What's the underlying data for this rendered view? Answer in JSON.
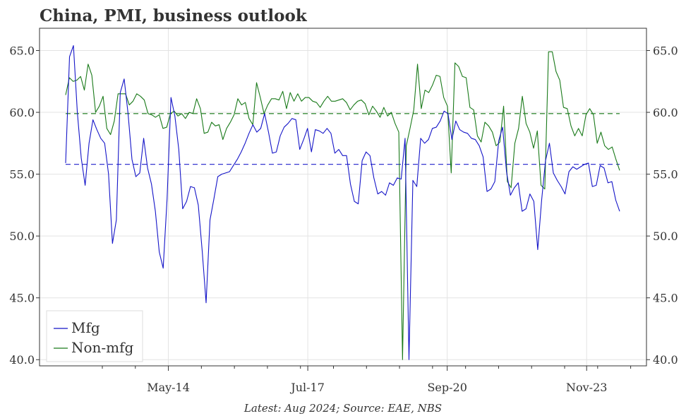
{
  "chart_data": {
    "type": "line",
    "title": "China, PMI, business outlook",
    "footer": "Latest: Aug 2024; Source: EAE, NBS",
    "x_start": "2012-01",
    "x_end": "2024-08",
    "x_major_ticks": [
      {
        "date": "2014-05",
        "label": "May-14"
      },
      {
        "date": "2017-07",
        "label": "Jul-17"
      },
      {
        "date": "2020-09",
        "label": "Sep-20"
      },
      {
        "date": "2023-11",
        "label": "Nov-23"
      }
    ],
    "y_ticks": [
      "40.0",
      "45.0",
      "50.0",
      "55.0",
      "60.0",
      "65.0"
    ],
    "ylim": [
      39.5,
      66.8
    ],
    "grid": true,
    "legend_position": "bottom-left",
    "colors": {
      "mfg": "#1515c8",
      "nonmfg": "#1a7a1a",
      "grid": "#e3e3e3",
      "axis": "#333333"
    },
    "series": [
      {
        "name": "Mfg",
        "color": "#1515c8",
        "average": 55.8,
        "values": [
          55.9,
          64.5,
          65.4,
          60.0,
          56.3,
          54.1,
          57.5,
          59.4,
          58.6,
          57.9,
          57.5,
          55.0,
          49.4,
          51.3,
          61.6,
          62.7,
          59.9,
          56.2,
          54.8,
          55.1,
          57.9,
          55.5,
          54.2,
          52.0,
          48.7,
          47.4,
          53.0,
          61.2,
          59.7,
          57.0,
          52.2,
          52.8,
          54.0,
          53.9,
          52.5,
          48.8,
          44.6,
          51.3,
          53.0,
          54.8,
          55.0,
          55.1,
          55.2,
          55.7,
          56.2,
          56.8,
          57.5,
          58.3,
          59.0,
          58.4,
          58.7,
          59.9,
          58.4,
          56.7,
          56.8,
          58.1,
          58.8,
          59.1,
          59.5,
          59.4,
          57.0,
          57.8,
          58.7,
          56.8,
          58.6,
          58.5,
          58.3,
          58.7,
          58.3,
          56.7,
          57.0,
          56.5,
          56.5,
          54.2,
          52.8,
          52.6,
          56.1,
          56.8,
          56.5,
          54.7,
          53.4,
          53.6,
          53.3,
          54.3,
          54.1,
          54.7,
          54.6,
          57.9,
          40.0,
          54.5,
          54.0,
          57.9,
          57.5,
          57.8,
          58.7,
          58.8,
          59.3,
          60.1,
          59.9,
          57.8,
          59.3,
          58.6,
          58.4,
          58.3,
          57.9,
          57.8,
          57.3,
          56.4,
          53.6,
          53.8,
          54.4,
          57.7,
          58.8,
          55.2,
          53.3,
          53.9,
          54.3,
          52.0,
          52.2,
          53.4,
          52.8,
          48.9,
          52.9,
          56.1,
          57.5,
          55.1,
          54.5,
          54.0,
          53.4,
          55.2,
          55.6,
          55.4,
          55.6,
          55.8,
          55.9,
          54.0,
          54.1,
          55.7,
          55.5,
          54.3,
          54.4,
          52.9,
          52.0
        ]
      },
      {
        "name": "Non-mfg",
        "color": "#1a7a1a",
        "average": 59.9,
        "values": [
          61.4,
          62.8,
          62.5,
          62.6,
          62.9,
          61.8,
          63.9,
          63.0,
          60.0,
          60.5,
          61.3,
          58.7,
          58.2,
          59.3,
          61.5,
          61.5,
          61.5,
          60.6,
          60.9,
          61.5,
          61.3,
          61.0,
          59.9,
          59.8,
          59.6,
          59.8,
          58.7,
          58.8,
          59.9,
          60.1,
          59.7,
          59.9,
          59.5,
          60.0,
          59.9,
          61.1,
          60.3,
          58.3,
          58.4,
          59.2,
          58.9,
          59.0,
          57.8,
          58.7,
          59.2,
          59.8,
          61.1,
          60.6,
          60.8,
          59.5,
          59.0,
          62.4,
          61.2,
          59.9,
          60.6,
          61.1,
          61.1,
          61.0,
          61.7,
          60.3,
          61.6,
          60.9,
          61.5,
          60.9,
          61.2,
          61.2,
          60.9,
          60.8,
          60.4,
          60.9,
          61.3,
          60.9,
          60.9,
          61.0,
          61.1,
          60.8,
          60.2,
          60.6,
          60.9,
          61.0,
          60.7,
          59.8,
          60.5,
          60.1,
          59.6,
          60.4,
          59.7,
          60.0,
          59.1,
          58.4,
          40.0,
          57.3,
          58.7,
          60.2,
          63.9,
          60.3,
          61.8,
          61.6,
          62.2,
          63.0,
          62.9,
          61.2,
          60.5,
          55.1,
          64.0,
          63.7,
          62.9,
          62.8,
          60.4,
          60.2,
          58.1,
          57.6,
          59.2,
          58.9,
          58.4,
          57.3,
          57.6,
          60.5,
          54.4,
          53.9,
          57.5,
          58.7,
          61.3,
          59.1,
          58.4,
          57.1,
          58.5,
          54.1,
          53.8,
          64.9,
          64.9,
          63.3,
          62.6,
          60.4,
          60.3,
          58.9,
          58.1,
          58.7,
          58.1,
          59.8,
          60.3,
          59.8,
          57.5,
          58.4,
          57.3,
          57.0,
          57.2,
          56.2,
          55.3
        ]
      }
    ]
  }
}
